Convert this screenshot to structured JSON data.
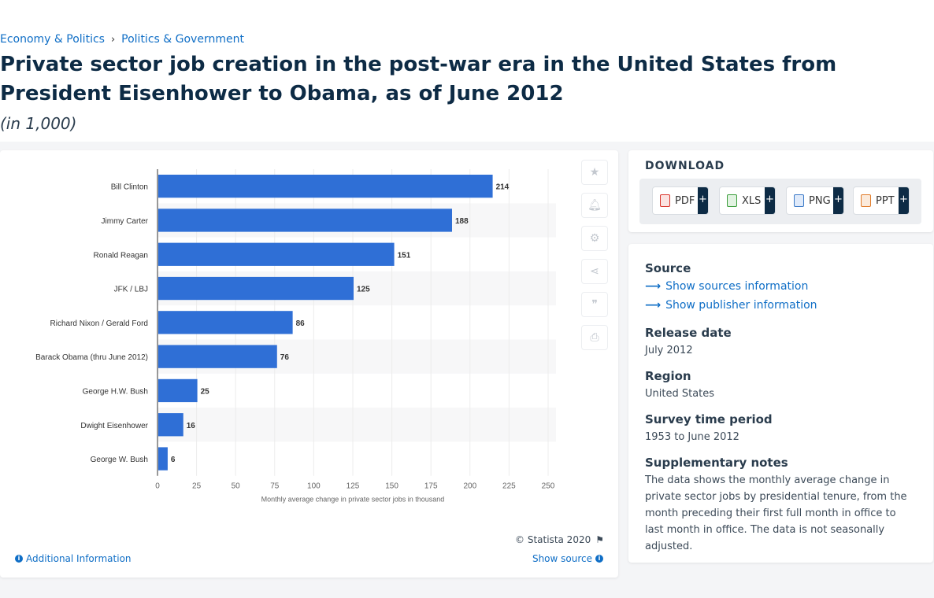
{
  "breadcrumb": {
    "item1": "Economy & Politics",
    "separator": "›",
    "item2": "Politics & Government"
  },
  "page": {
    "title": "Private sector job creation in the post-war era in the United States from President Eisenhower to Obama, as of June 2012",
    "subtitle": "(in 1,000)"
  },
  "chart_data": {
    "type": "bar",
    "orientation": "horizontal",
    "categories": [
      "Bill Clinton",
      "Jimmy Carter",
      "Ronald Reagan",
      "JFK / LBJ",
      "Richard Nixon / Gerald Ford",
      "Barack Obama (thru June 2012)",
      "George H.W. Bush",
      "Dwight Eisenhower",
      "George W. Bush"
    ],
    "values": [
      214,
      188,
      151,
      125,
      86,
      76,
      25,
      16,
      6
    ],
    "xlabel": "Monthly average change in private sector jobs in thousand",
    "ylabel": "",
    "xlim": [
      0,
      250
    ],
    "x_ticks": [
      0,
      25,
      50,
      75,
      100,
      125,
      150,
      175,
      200,
      225,
      250
    ],
    "bar_color": "#2f6fd6",
    "grid": true,
    "data_labels": true
  },
  "chart_footer": {
    "credit": "© Statista 2020",
    "additional_info": "Additional Information",
    "show_source": "Show source"
  },
  "tools": [
    "star-icon",
    "bell-icon",
    "gear-icon",
    "share-icon",
    "quote-icon",
    "print-icon"
  ],
  "download": {
    "title": "DOWNLOAD",
    "buttons": [
      {
        "label": "PDF",
        "color": "#d9342b"
      },
      {
        "label": "XLS",
        "color": "#3a9d3a"
      },
      {
        "label": "PNG",
        "color": "#3b79c7"
      },
      {
        "label": "PPT",
        "color": "#e07b2a"
      }
    ],
    "plus": "+"
  },
  "meta": {
    "source_heading": "Source",
    "show_sources": "Show sources information",
    "show_publisher": "Show publisher information",
    "release_heading": "Release date",
    "release_value": "July 2012",
    "region_heading": "Region",
    "region_value": "United States",
    "survey_heading": "Survey time period",
    "survey_value": "1953 to June 2012",
    "notes_heading": "Supplementary notes",
    "notes_value": "The data shows the monthly average change in private sector jobs by presidential tenure, from the month preceding their first full month in office to last month in office. The data is not seasonally adjusted."
  }
}
